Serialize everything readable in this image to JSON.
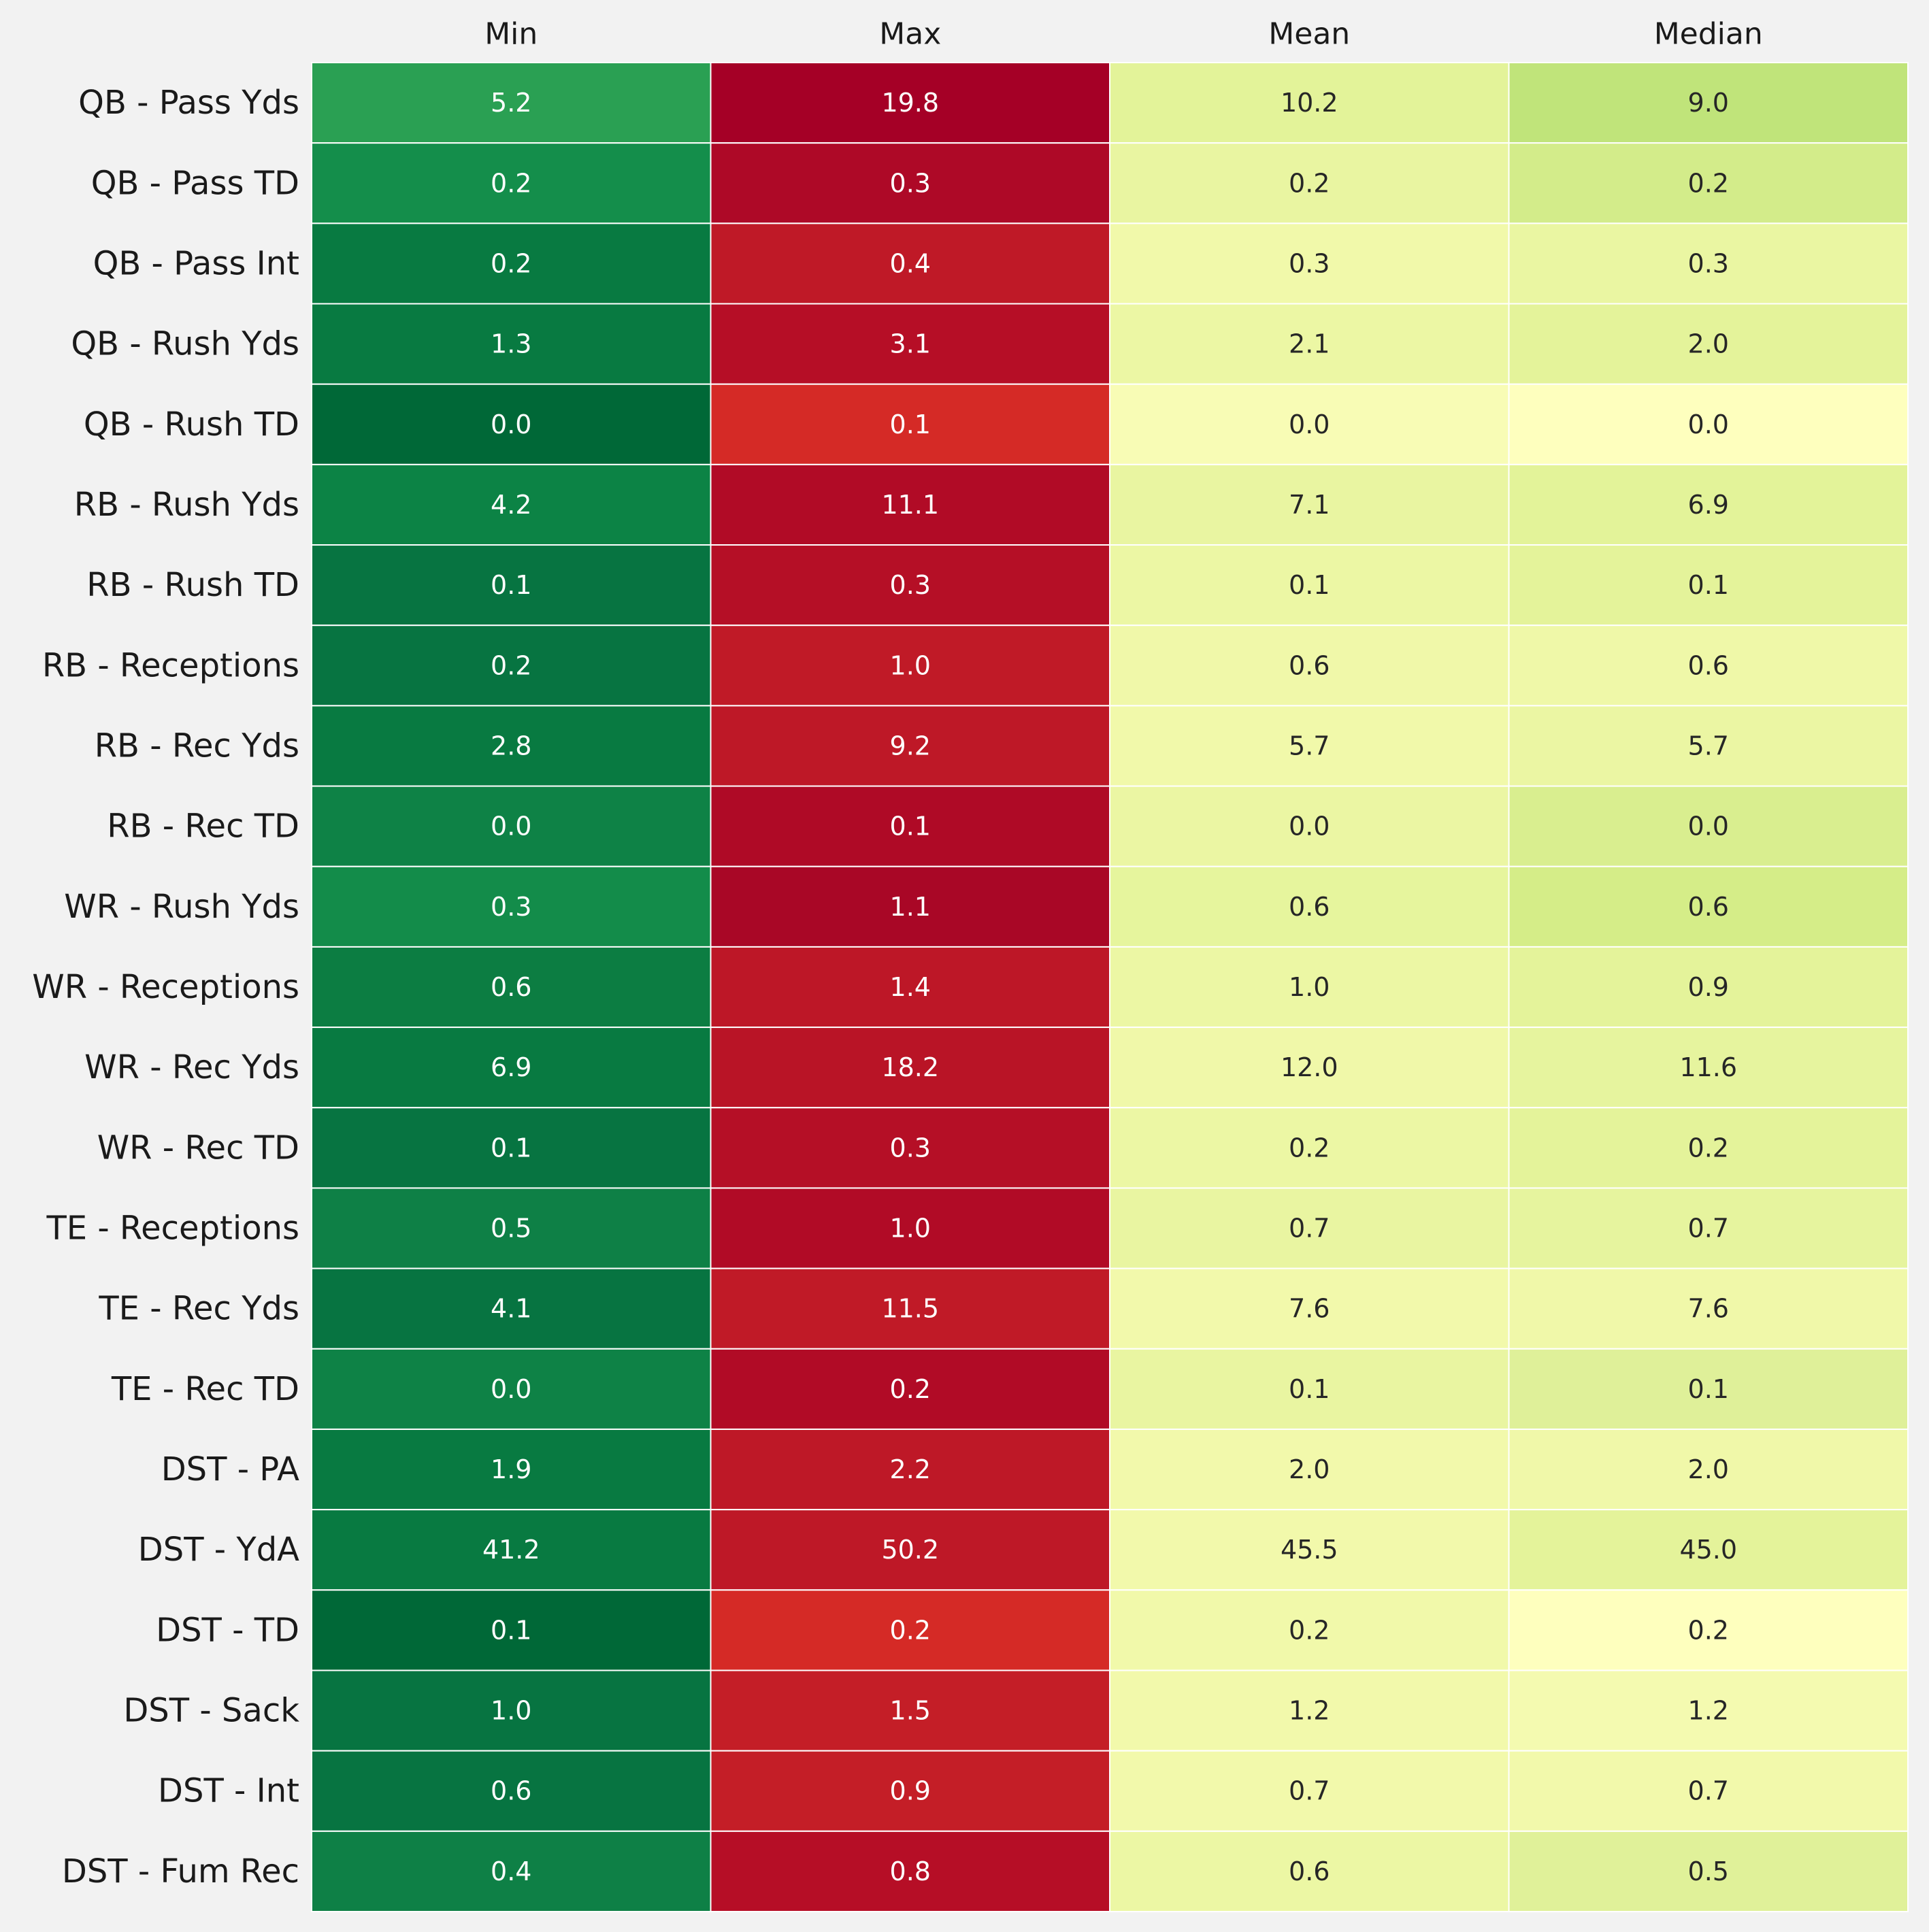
{
  "chart_data": {
    "type": "heatmap",
    "columns": [
      "Min",
      "Max",
      "Mean",
      "Median"
    ],
    "rows": [
      "QB - Pass Yds",
      "QB - Pass TD",
      "QB - Pass Int",
      "QB - Rush Yds",
      "QB - Rush TD",
      "RB - Rush Yds",
      "RB - Rush TD",
      "RB - Receptions",
      "RB - Rec Yds",
      "RB - Rec TD",
      "WR - Rush Yds",
      "WR - Receptions",
      "WR - Rec Yds",
      "WR - Rec TD",
      "TE - Receptions",
      "TE - Rec Yds",
      "TE - Rec TD",
      "DST - PA",
      "DST - YdA",
      "DST - TD",
      "DST - Sack",
      "DST - Int",
      "DST - Fum Rec"
    ],
    "values": [
      [
        5.2,
        19.8,
        10.2,
        9.0
      ],
      [
        0.2,
        0.3,
        0.2,
        0.2
      ],
      [
        0.2,
        0.4,
        0.3,
        0.3
      ],
      [
        1.3,
        3.1,
        2.1,
        2.0
      ],
      [
        0.0,
        0.1,
        0.0,
        0.0
      ],
      [
        4.2,
        11.1,
        7.1,
        6.9
      ],
      [
        0.1,
        0.3,
        0.1,
        0.1
      ],
      [
        0.2,
        1.0,
        0.6,
        0.6
      ],
      [
        2.8,
        9.2,
        5.7,
        5.7
      ],
      [
        0.0,
        0.1,
        0.0,
        0.0
      ],
      [
        0.3,
        1.1,
        0.6,
        0.6
      ],
      [
        0.6,
        1.4,
        1.0,
        0.9
      ],
      [
        6.9,
        18.2,
        12.0,
        11.6
      ],
      [
        0.1,
        0.3,
        0.2,
        0.2
      ],
      [
        0.5,
        1.0,
        0.7,
        0.7
      ],
      [
        4.1,
        11.5,
        7.6,
        7.6
      ],
      [
        0.0,
        0.2,
        0.1,
        0.1
      ],
      [
        1.9,
        2.2,
        2.0,
        2.0
      ],
      [
        41.2,
        50.2,
        45.5,
        45.0
      ],
      [
        0.1,
        0.2,
        0.2,
        0.2
      ],
      [
        1.0,
        1.5,
        1.2,
        1.2
      ],
      [
        0.6,
        0.9,
        0.7,
        0.7
      ],
      [
        0.4,
        0.8,
        0.6,
        0.5
      ]
    ],
    "value_format": "0.0",
    "colormap": "RdYlGn (per-row normalization, Min greenest, Max reddest)",
    "cell_colors": [
      [
        "#2aa053",
        "#a50026",
        "#e3f399",
        "#c0e47a"
      ],
      [
        "#148e4b",
        "#ae0927",
        "#e9f5a1",
        "#d3ec8a"
      ],
      [
        "#087a41",
        "#bf1927",
        "#f1f9aa",
        "#eaf6a2"
      ],
      [
        "#087a41",
        "#b60e26",
        "#ecf7a4",
        "#e4f39a"
      ],
      [
        "#006837",
        "#d52a26",
        "#f8fcb5",
        "#feffbe"
      ],
      [
        "#0c8345",
        "#b10b26",
        "#e9f5a1",
        "#e3f399"
      ],
      [
        "#077441",
        "#b50f26",
        "#ecf7a4",
        "#e4f39a"
      ],
      [
        "#077441",
        "#c01a27",
        "#f0f8a9",
        "#eff8a8"
      ],
      [
        "#087a41",
        "#be1827",
        "#f1f9aa",
        "#ebf6a3"
      ],
      [
        "#0e8246",
        "#af0a26",
        "#ebf6a3",
        "#d9ee8f"
      ],
      [
        "#138c4a",
        "#a90726",
        "#e6f59d",
        "#d5ed88"
      ],
      [
        "#0c7d42",
        "#bd1727",
        "#ecf7a4",
        "#e4f39a"
      ],
      [
        "#087a41",
        "#b91426",
        "#f0f8a9",
        "#e6f49e"
      ],
      [
        "#077441",
        "#b50f26",
        "#ecf7a4",
        "#e4f39a"
      ],
      [
        "#0e8046",
        "#b10b26",
        "#e9f5a1",
        "#e6f49e"
      ],
      [
        "#077441",
        "#c01a27",
        "#f2f9ab",
        "#f0f8a9"
      ],
      [
        "#0e8246",
        "#b10b26",
        "#e9f5a1",
        "#dff099"
      ],
      [
        "#087a41",
        "#be1827",
        "#f2f9ab",
        "#f0f8a9"
      ],
      [
        "#087a41",
        "#be1827",
        "#f2f9ab",
        "#e4f39a"
      ],
      [
        "#006837",
        "#d52a26",
        "#f1f9aa",
        "#feffbe"
      ],
      [
        "#077441",
        "#c41e27",
        "#f2f9ab",
        "#f4fab0"
      ],
      [
        "#077441",
        "#c41e27",
        "#f2f9ab",
        "#f2f9ab"
      ],
      [
        "#0e8046",
        "#b60e26",
        "#ecf7a4",
        "#e0f199"
      ]
    ]
  }
}
